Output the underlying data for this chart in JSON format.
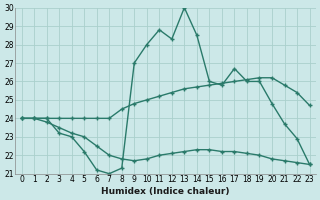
{
  "xlabel": "Humidex (Indice chaleur)",
  "x": [
    0,
    1,
    2,
    3,
    4,
    5,
    6,
    7,
    8,
    9,
    10,
    11,
    12,
    13,
    14,
    15,
    16,
    17,
    18,
    19,
    20,
    21,
    22,
    23
  ],
  "line_max": [
    24,
    24,
    24,
    23.2,
    23,
    22.2,
    21.2,
    21,
    21.3,
    27,
    28,
    28.8,
    28.3,
    30,
    28.5,
    26,
    25.8,
    26.7,
    26,
    26,
    24.8,
    23.7,
    22.9,
    21.5
  ],
  "line_avg": [
    24,
    24,
    24,
    24,
    24,
    24,
    24,
    24,
    24.5,
    24.8,
    25,
    25.2,
    25.4,
    25.6,
    25.7,
    25.8,
    25.9,
    26,
    26.1,
    26.2,
    26.2,
    25.8,
    25.4,
    24.7
  ],
  "line_min": [
    24,
    24,
    23.8,
    23.5,
    23.2,
    23,
    22.5,
    22,
    21.8,
    21.7,
    21.8,
    22,
    22.1,
    22.2,
    22.3,
    22.3,
    22.2,
    22.2,
    22.1,
    22,
    21.8,
    21.7,
    21.6,
    21.5
  ],
  "ylim": [
    21,
    30
  ],
  "yticks": [
    21,
    22,
    23,
    24,
    25,
    26,
    27,
    28,
    29,
    30
  ],
  "xticks": [
    0,
    1,
    2,
    3,
    4,
    5,
    6,
    7,
    8,
    9,
    10,
    11,
    12,
    13,
    14,
    15,
    16,
    17,
    18,
    19,
    20,
    21,
    22,
    23
  ],
  "line_color": "#2a7a6a",
  "bg_color": "#cce8e8",
  "grid_color": "#aad0cc",
  "fig_bg": "#cce8e8"
}
